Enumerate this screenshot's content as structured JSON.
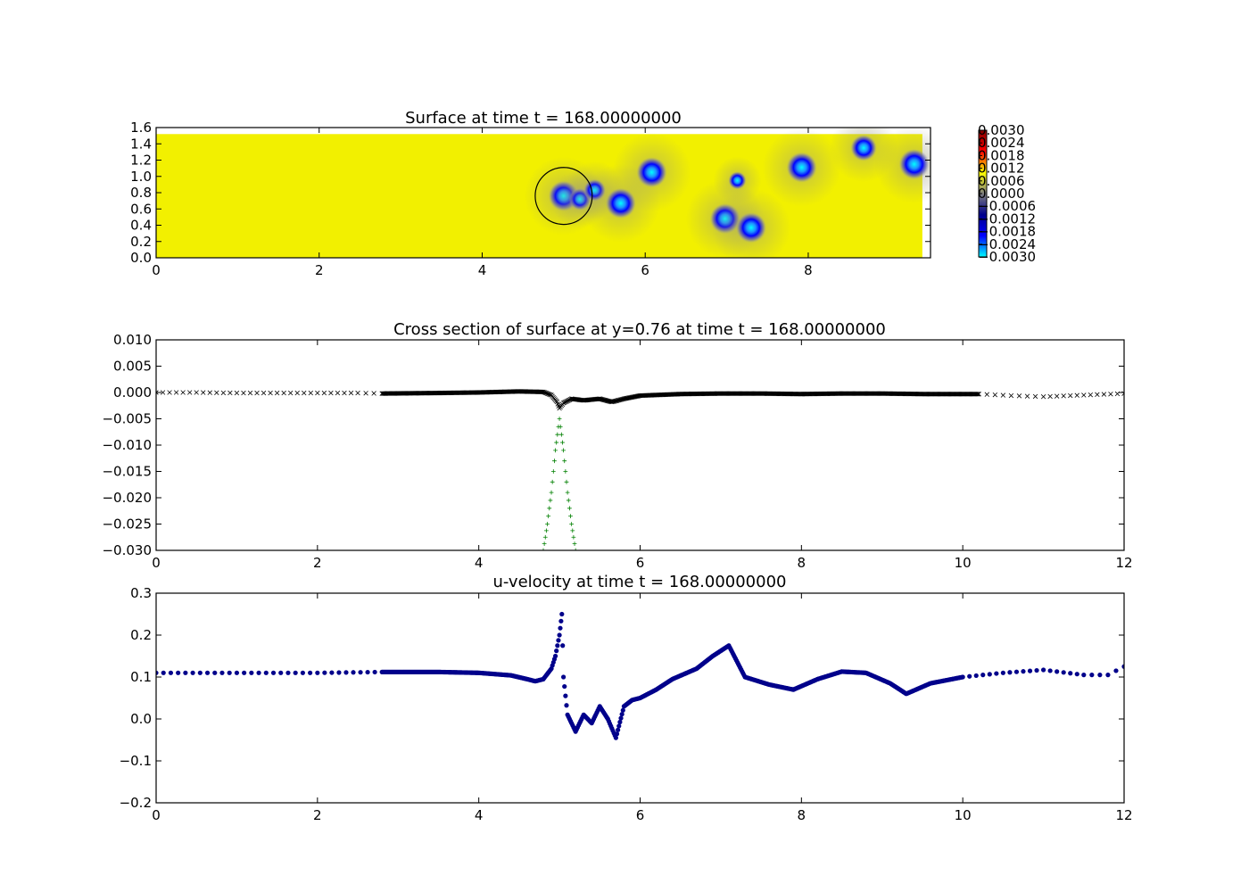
{
  "chart_data": [
    {
      "type": "heatmap",
      "title": "Surface at time t =   168.00000000",
      "xlim": [
        0,
        9.5
      ],
      "ylim": [
        0,
        1.6
      ],
      "x_ticks": [
        {
          "v": 0,
          "label": "0"
        },
        {
          "v": 2,
          "label": "2"
        },
        {
          "v": 4,
          "label": "4"
        },
        {
          "v": 6,
          "label": "6"
        },
        {
          "v": 8,
          "label": "8"
        }
      ],
      "y_ticks": [
        {
          "v": 0,
          "label": "0.0"
        },
        {
          "v": 0.2,
          "label": "0.2"
        },
        {
          "v": 0.4,
          "label": "0.4"
        },
        {
          "v": 0.6,
          "label": "0.6"
        },
        {
          "v": 0.8,
          "label": "0.8"
        },
        {
          "v": 1.0,
          "label": "1.0"
        },
        {
          "v": 1.2,
          "label": "1.2"
        },
        {
          "v": 1.4,
          "label": "1.4"
        },
        {
          "v": 1.6,
          "label": "1.6"
        }
      ],
      "field_extent": {
        "x": [
          0,
          9.4
        ],
        "y": [
          0,
          1.52
        ]
      },
      "depressions": [
        {
          "x": 5.0,
          "y": 0.76,
          "depth": -0.003
        },
        {
          "x": 5.2,
          "y": 0.72,
          "depth": -0.002
        },
        {
          "x": 5.38,
          "y": 0.83,
          "depth": -0.002
        },
        {
          "x": 5.7,
          "y": 0.67,
          "depth": -0.003
        },
        {
          "x": 6.08,
          "y": 1.05,
          "depth": -0.003
        },
        {
          "x": 6.98,
          "y": 0.48,
          "depth": -0.003
        },
        {
          "x": 7.13,
          "y": 0.95,
          "depth": -0.0015
        },
        {
          "x": 7.3,
          "y": 0.37,
          "depth": -0.003
        },
        {
          "x": 7.92,
          "y": 1.11,
          "depth": -0.003
        },
        {
          "x": 8.68,
          "y": 1.35,
          "depth": -0.0025
        },
        {
          "x": 9.3,
          "y": 1.15,
          "depth": -0.003
        }
      ],
      "circle": {
        "x": 5.0,
        "y": 0.76,
        "r": 0.35
      },
      "colorbar": {
        "labels": [
          "0.0030",
          "0.0024",
          "0.0018",
          "0.0012",
          "0.0006",
          "0.0000",
          "−0.0006",
          "−0.0012",
          "−0.0018",
          "−0.0024",
          "−0.0030"
        ],
        "colors": [
          "#00ffff",
          "#0000ff",
          "#00008b",
          "#808080",
          "#ffff00",
          "#ff0000",
          "#800000"
        ]
      }
    },
    {
      "type": "scatter",
      "title": "Cross section of surface at y=0.76 at time t =   168.00000000",
      "xlim": [
        0,
        12
      ],
      "ylim": [
        -0.03,
        0.01
      ],
      "x_ticks": [
        {
          "v": 0,
          "label": "0"
        },
        {
          "v": 2,
          "label": "2"
        },
        {
          "v": 4,
          "label": "4"
        },
        {
          "v": 6,
          "label": "6"
        },
        {
          "v": 8,
          "label": "8"
        },
        {
          "v": 10,
          "label": "10"
        },
        {
          "v": 12,
          "label": "12"
        }
      ],
      "y_ticks": [
        {
          "v": 0.01,
          "label": "0.010"
        },
        {
          "v": 0.005,
          "label": "0.005"
        },
        {
          "v": 0,
          "label": "0.000"
        },
        {
          "v": -0.005,
          "label": "−0.005"
        },
        {
          "v": -0.01,
          "label": "−0.010"
        },
        {
          "v": -0.015,
          "label": "−0.015"
        },
        {
          "v": -0.02,
          "label": "−0.020"
        },
        {
          "v": -0.025,
          "label": "−0.025"
        },
        {
          "v": -0.03,
          "label": "−0.030"
        }
      ],
      "series": [
        {
          "marker": "x",
          "color": "#000000",
          "points": [
            [
              0,
              0.0
            ],
            [
              0.5,
              0.0
            ],
            [
              1,
              -0.0001
            ],
            [
              1.5,
              -0.0001
            ],
            [
              2,
              -0.0001
            ],
            [
              2.5,
              -0.0001
            ],
            [
              2.8,
              -0.0002
            ],
            [
              3.5,
              -0.0001
            ],
            [
              4.0,
              0.0
            ],
            [
              4.5,
              0.0002
            ],
            [
              4.8,
              0.0001
            ],
            [
              4.9,
              -0.0005
            ],
            [
              4.97,
              -0.0018
            ],
            [
              5.0,
              -0.003
            ],
            [
              5.05,
              -0.002
            ],
            [
              5.15,
              -0.0012
            ],
            [
              5.3,
              -0.0015
            ],
            [
              5.5,
              -0.0012
            ],
            [
              5.65,
              -0.0018
            ],
            [
              5.8,
              -0.0012
            ],
            [
              6.0,
              -0.0006
            ],
            [
              6.5,
              -0.0003
            ],
            [
              7.0,
              -0.0002
            ],
            [
              7.5,
              -0.0002
            ],
            [
              8.0,
              -0.0003
            ],
            [
              8.5,
              -0.0002
            ],
            [
              9.0,
              -0.0002
            ],
            [
              9.5,
              -0.0003
            ],
            [
              10.2,
              -0.0003
            ],
            [
              10.6,
              -0.0006
            ],
            [
              11.0,
              -0.0008
            ],
            [
              11.5,
              -0.0005
            ],
            [
              12.0,
              -0.0002
            ]
          ]
        },
        {
          "marker": "+",
          "color": "#008000",
          "points": [
            [
              4.8,
              -0.03
            ],
            [
              4.85,
              -0.025
            ],
            [
              4.9,
              -0.019
            ],
            [
              4.95,
              -0.011
            ],
            [
              5.0,
              -0.005
            ],
            [
              5.05,
              -0.011
            ],
            [
              5.1,
              -0.019
            ],
            [
              5.15,
              -0.025
            ],
            [
              5.2,
              -0.03
            ]
          ]
        }
      ]
    },
    {
      "type": "scatter",
      "title": "u-velocity at time t =   168.00000000",
      "xlim": [
        0,
        12
      ],
      "ylim": [
        -0.2,
        0.3
      ],
      "x_ticks": [
        {
          "v": 0,
          "label": "0"
        },
        {
          "v": 2,
          "label": "2"
        },
        {
          "v": 4,
          "label": "4"
        },
        {
          "v": 6,
          "label": "6"
        },
        {
          "v": 8,
          "label": "8"
        },
        {
          "v": 10,
          "label": "10"
        },
        {
          "v": 12,
          "label": "12"
        }
      ],
      "y_ticks": [
        {
          "v": 0.3,
          "label": "0.3"
        },
        {
          "v": 0.2,
          "label": "0.2"
        },
        {
          "v": 0.1,
          "label": "0.1"
        },
        {
          "v": 0,
          "label": "0.0"
        },
        {
          "v": -0.1,
          "label": "−0.1"
        },
        {
          "v": -0.2,
          "label": "−0.2"
        }
      ],
      "series": [
        {
          "marker": "o",
          "color": "#00008b",
          "points": [
            [
              0,
              0.11
            ],
            [
              1,
              0.11
            ],
            [
              2,
              0.11
            ],
            [
              2.8,
              0.112
            ],
            [
              3.5,
              0.112
            ],
            [
              4.0,
              0.11
            ],
            [
              4.4,
              0.104
            ],
            [
              4.6,
              0.095
            ],
            [
              4.7,
              0.09
            ],
            [
              4.8,
              0.095
            ],
            [
              4.9,
              0.12
            ],
            [
              4.95,
              0.15
            ],
            [
              5.0,
              0.2
            ],
            [
              5.03,
              0.25
            ],
            [
              5.05,
              0.1
            ],
            [
              5.1,
              0.01
            ],
            [
              5.2,
              -0.03
            ],
            [
              5.3,
              0.01
            ],
            [
              5.4,
              -0.01
            ],
            [
              5.5,
              0.03
            ],
            [
              5.6,
              0.0
            ],
            [
              5.7,
              -0.045
            ],
            [
              5.8,
              0.03
            ],
            [
              5.9,
              0.045
            ],
            [
              6.0,
              0.05
            ],
            [
              6.2,
              0.07
            ],
            [
              6.4,
              0.095
            ],
            [
              6.7,
              0.12
            ],
            [
              6.9,
              0.15
            ],
            [
              7.1,
              0.175
            ],
            [
              7.3,
              0.1
            ],
            [
              7.6,
              0.082
            ],
            [
              7.9,
              0.07
            ],
            [
              8.2,
              0.095
            ],
            [
              8.5,
              0.113
            ],
            [
              8.8,
              0.11
            ],
            [
              9.1,
              0.085
            ],
            [
              9.3,
              0.06
            ],
            [
              9.6,
              0.085
            ],
            [
              10.0,
              0.1
            ],
            [
              10.5,
              0.11
            ],
            [
              11.0,
              0.117
            ],
            [
              11.5,
              0.105
            ],
            [
              11.8,
              0.105
            ],
            [
              12.0,
              0.125
            ]
          ]
        }
      ]
    }
  ]
}
